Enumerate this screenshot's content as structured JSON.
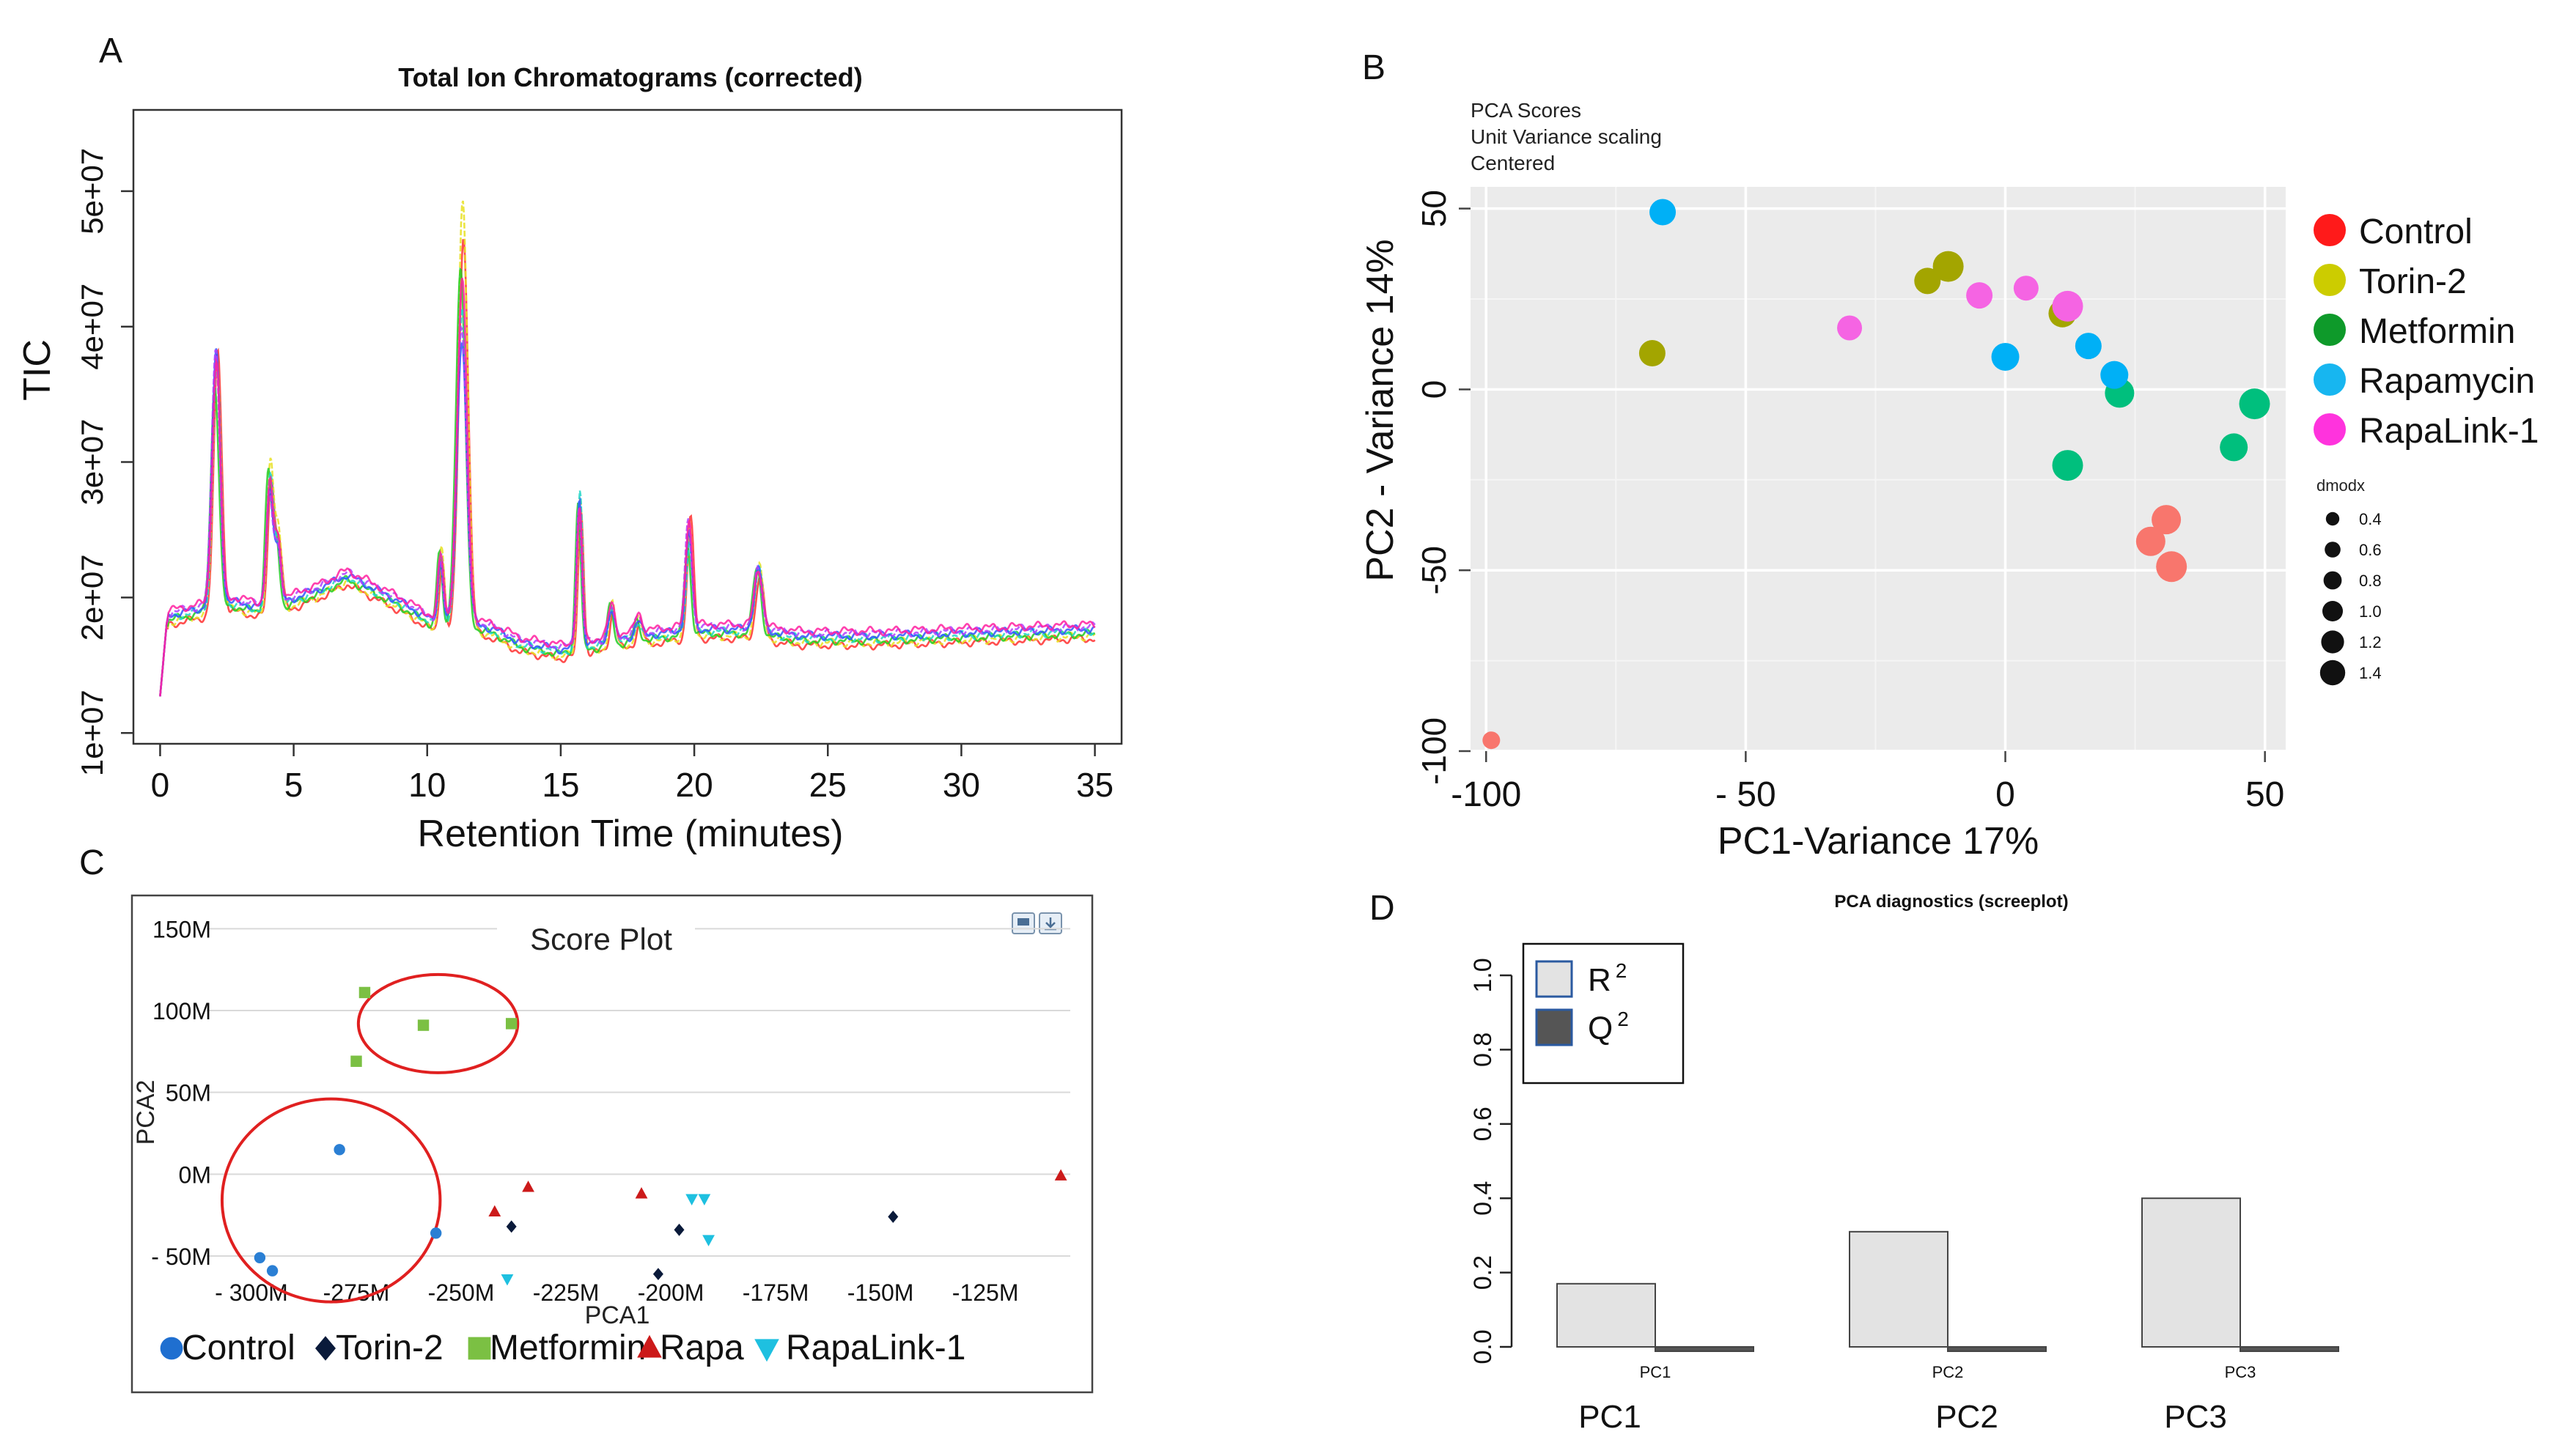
{
  "panel_letters": {
    "A": "A",
    "B": "B",
    "C": "C",
    "D": "D"
  },
  "chart_data": [
    {
      "panel": "A",
      "type": "line",
      "title": "Total Ion Chromatograms (corrected)",
      "xlabel": "Retention Time (minutes)",
      "ylabel": "TIC",
      "xlim": [
        -1,
        36
      ],
      "ylim": [
        9200000.0,
        56000000.0
      ],
      "xticks": [
        0,
        5,
        10,
        15,
        20,
        25,
        30,
        35
      ],
      "xtick_labels": [
        "0",
        "5",
        "10",
        "15",
        "20",
        "25",
        "30",
        "35"
      ],
      "yticks": [
        10000000.0,
        20000000.0,
        30000000.0,
        40000000.0,
        50000000.0
      ],
      "ytick_labels": [
        "1e+07",
        "2e+07",
        "3e+07",
        "4e+07",
        "5e+07"
      ],
      "baseline_profile": [
        [
          0,
          12500000.0
        ],
        [
          0.3,
          18500000.0
        ],
        [
          1.5,
          19000000.0
        ],
        [
          2.8,
          19500000.0
        ],
        [
          4,
          19000000.0
        ],
        [
          6,
          20500000.0
        ],
        [
          7,
          21500000.0
        ],
        [
          9,
          19500000.0
        ],
        [
          10.3,
          18000000.0
        ],
        [
          11.5,
          18000000.0
        ],
        [
          12.5,
          17500000.0
        ],
        [
          13.5,
          16500000.0
        ],
        [
          15,
          16000000.0
        ],
        [
          16.5,
          16500000.0
        ],
        [
          18,
          17000000.0
        ],
        [
          20,
          17500000.0
        ],
        [
          22,
          17500000.0
        ],
        [
          24,
          17000000.0
        ],
        [
          27,
          17000000.0
        ],
        [
          30,
          17200000.0
        ],
        [
          35,
          17500000.0
        ]
      ],
      "peaks": [
        [
          2.1,
          39000000.0,
          0.15
        ],
        [
          4.1,
          29500000.0,
          0.12
        ],
        [
          4.4,
          24500000.0,
          0.12
        ],
        [
          10.5,
          23500000.0,
          0.1
        ],
        [
          11.3,
          45000000.0,
          0.18
        ],
        [
          15.7,
          28000000.0,
          0.1
        ],
        [
          16.9,
          19500000.0,
          0.12
        ],
        [
          17.9,
          18500000.0,
          0.12
        ],
        [
          19.8,
          25500000.0,
          0.12
        ],
        [
          22.4,
          22500000.0,
          0.15
        ]
      ],
      "series": [
        {
          "name": "red",
          "color": "#ff3030",
          "scale": 1.16,
          "shift": 0.06
        },
        {
          "name": "yellow",
          "color": "#e7e020",
          "scale": 1.18,
          "shift": 0.03
        },
        {
          "name": "green",
          "color": "#22cc22",
          "scale": 1.0,
          "shift": -0.05
        },
        {
          "name": "cyan",
          "color": "#1fd6c6",
          "scale": 0.98,
          "shift": 0.02
        },
        {
          "name": "blue",
          "color": "#3355ff",
          "scale": 0.96,
          "shift": 0.0
        },
        {
          "name": "violet",
          "color": "#b040ff",
          "scale": 0.99,
          "shift": -0.02
        },
        {
          "name": "magenta",
          "color": "#ff20a0",
          "scale": 1.02,
          "shift": 0.01
        }
      ]
    },
    {
      "panel": "B",
      "type": "scatter",
      "title_lines": [
        "PCA Scores",
        "Unit Variance scaling",
        "Centered"
      ],
      "xlabel": "PC1-Variance 17%",
      "ylabel": "PC2 - Variance 14%",
      "xlim": [
        -103,
        54
      ],
      "ylim": [
        -100,
        56
      ],
      "xticks": [
        -100,
        -50,
        0,
        50
      ],
      "xtick_labels": [
        "-100",
        "- 50",
        "0",
        "50"
      ],
      "yticks": [
        -100,
        -50,
        0,
        50
      ],
      "ytick_labels": [
        "-100",
        "-50",
        "0",
        "50"
      ],
      "legend": [
        {
          "label": "Control",
          "color": "#ff1a1a"
        },
        {
          "label": "Torin-2",
          "color": "#cccc00"
        },
        {
          "label": "Metformin",
          "color": "#0e9a2a"
        },
        {
          "label": "Rapamycin",
          "color": "#17b6f0"
        },
        {
          "label": "RapaLink-1",
          "color": "#ff33dd"
        }
      ],
      "size_legend_title": "dmodx",
      "size_legend": [
        {
          "label": "0.4",
          "value": 0.4
        },
        {
          "label": "0.6",
          "value": 0.6
        },
        {
          "label": "0.8",
          "value": 0.8
        },
        {
          "label": "1.0",
          "value": 1.0
        },
        {
          "label": "1.2",
          "value": 1.2
        },
        {
          "label": "1.4",
          "value": 1.4
        }
      ],
      "points": [
        {
          "x": -99,
          "y": -97,
          "group": "Control",
          "color": "#f8766d",
          "size": 0.4
        },
        {
          "x": 31,
          "y": -36,
          "group": "Control",
          "color": "#f8766d",
          "size": 1.2
        },
        {
          "x": 28,
          "y": -42,
          "group": "Control",
          "color": "#f8766d",
          "size": 1.2
        },
        {
          "x": 32,
          "y": -49,
          "group": "Control",
          "color": "#f8766d",
          "size": 1.3
        },
        {
          "x": -68,
          "y": 10,
          "group": "Torin-2",
          "color": "#a3a500",
          "size": 1.0
        },
        {
          "x": -15,
          "y": 30,
          "group": "Torin-2",
          "color": "#a3a500",
          "size": 1.0
        },
        {
          "x": -11,
          "y": 34,
          "group": "Torin-2",
          "color": "#a3a500",
          "size": 1.3
        },
        {
          "x": 11,
          "y": 21,
          "group": "Torin-2",
          "color": "#a3a500",
          "size": 1.1
        },
        {
          "x": 22,
          "y": -1,
          "group": "Metformin",
          "color": "#00bf7d",
          "size": 1.2
        },
        {
          "x": 48,
          "y": -4,
          "group": "Metformin",
          "color": "#00bf7d",
          "size": 1.3
        },
        {
          "x": 44,
          "y": -16,
          "group": "Metformin",
          "color": "#00bf7d",
          "size": 1.1
        },
        {
          "x": 12,
          "y": -21,
          "group": "Metformin",
          "color": "#00bf7d",
          "size": 1.3
        },
        {
          "x": -66,
          "y": 49,
          "group": "Rapamycin",
          "color": "#00b0f6",
          "size": 1.0
        },
        {
          "x": 0,
          "y": 9,
          "group": "Rapamycin",
          "color": "#00b0f6",
          "size": 1.1
        },
        {
          "x": 16,
          "y": 12,
          "group": "Rapamycin",
          "color": "#00b0f6",
          "size": 1.0
        },
        {
          "x": 21,
          "y": 4,
          "group": "Rapamycin",
          "color": "#00b0f6",
          "size": 1.1
        },
        {
          "x": -30,
          "y": 17,
          "group": "RapaLink-1",
          "color": "#f564e3",
          "size": 0.9
        },
        {
          "x": -5,
          "y": 26,
          "group": "RapaLink-1",
          "color": "#f564e3",
          "size": 1.0
        },
        {
          "x": 4,
          "y": 28,
          "group": "RapaLink-1",
          "color": "#f564e3",
          "size": 0.9
        },
        {
          "x": 12,
          "y": 23,
          "group": "RapaLink-1",
          "color": "#f564e3",
          "size": 1.3
        }
      ]
    },
    {
      "panel": "C",
      "type": "scatter",
      "title": "Score Plot",
      "xlabel": "PCA1",
      "ylabel": "PCA2",
      "xlim": [
        -318,
        -103
      ],
      "ylim": [
        -67,
        160
      ],
      "xticks": [
        -300,
        -275,
        -250,
        -225,
        -200,
        -175,
        -150,
        -125
      ],
      "xtick_labels": [
        "- 300M",
        "-275M",
        "-250M",
        "-225M",
        "-200M",
        "-175M",
        "-150M",
        "-125M"
      ],
      "yticks": [
        -50,
        0,
        50,
        100,
        150
      ],
      "ytick_labels": [
        "- 50M",
        "0M",
        "50M",
        "100M",
        "150M"
      ],
      "legend": [
        {
          "label": "Control",
          "color": "#1f6fd0",
          "marker": "circle"
        },
        {
          "label": "Torin-2",
          "color": "#0a1a3a",
          "marker": "diamond"
        },
        {
          "label": "Metformin",
          "color": "#7bc043",
          "marker": "square"
        },
        {
          "label": "Rapa",
          "color": "#cc1a1a",
          "marker": "triangle-up"
        },
        {
          "label": "RapaLink-1",
          "color": "#1ec0e0",
          "marker": "triangle-down"
        }
      ],
      "points": [
        {
          "x": -298,
          "y": -51,
          "group": "Control",
          "marker": "circle",
          "color": "#2a7fd4"
        },
        {
          "x": -295,
          "y": -59,
          "group": "Control",
          "marker": "circle",
          "color": "#2a7fd4"
        },
        {
          "x": -279,
          "y": 15,
          "group": "Control",
          "marker": "circle",
          "color": "#2a7fd4"
        },
        {
          "x": -256,
          "y": -36,
          "group": "Control",
          "marker": "circle",
          "color": "#2a7fd4"
        },
        {
          "x": -273,
          "y": 111,
          "group": "Metformin",
          "marker": "square",
          "color": "#7bc043"
        },
        {
          "x": -275,
          "y": 69,
          "group": "Metformin",
          "marker": "square",
          "color": "#7bc043"
        },
        {
          "x": -259,
          "y": 91,
          "group": "Metformin",
          "marker": "square",
          "color": "#7bc043"
        },
        {
          "x": -238,
          "y": 92,
          "group": "Metformin",
          "marker": "square",
          "color": "#7bc043"
        },
        {
          "x": -238,
          "y": -32,
          "group": "Torin-2",
          "marker": "diamond",
          "color": "#0a1a3a"
        },
        {
          "x": -198,
          "y": -34,
          "group": "Torin-2",
          "marker": "diamond",
          "color": "#0a1a3a"
        },
        {
          "x": -203,
          "y": -61,
          "group": "Torin-2",
          "marker": "diamond",
          "color": "#0a1a3a"
        },
        {
          "x": -147,
          "y": -26,
          "group": "Torin-2",
          "marker": "diamond",
          "color": "#0a1a3a"
        },
        {
          "x": -242,
          "y": -23,
          "group": "Rapa",
          "marker": "triangle-up",
          "color": "#cc1a1a"
        },
        {
          "x": -234,
          "y": -8,
          "group": "Rapa",
          "marker": "triangle-up",
          "color": "#cc1a1a"
        },
        {
          "x": -207,
          "y": -12,
          "group": "Rapa",
          "marker": "triangle-up",
          "color": "#cc1a1a"
        },
        {
          "x": -107,
          "y": -1,
          "group": "Rapa",
          "marker": "triangle-up",
          "color": "#cc1a1a"
        },
        {
          "x": -239,
          "y": -64,
          "group": "RapaLink-1",
          "marker": "triangle-down",
          "color": "#1ec0e0"
        },
        {
          "x": -195,
          "y": -15,
          "group": "RapaLink-1",
          "marker": "triangle-down",
          "color": "#1ec0e0"
        },
        {
          "x": -192,
          "y": -15,
          "group": "RapaLink-1",
          "marker": "triangle-down",
          "color": "#1ec0e0"
        },
        {
          "x": -191,
          "y": -40,
          "group": "RapaLink-1",
          "marker": "triangle-down",
          "color": "#1ec0e0"
        }
      ],
      "ellipses": [
        {
          "cx": -255.5,
          "cy": 92,
          "rx": 19,
          "ry": 30,
          "color": "#e02020"
        },
        {
          "cx": -281,
          "cy": -16,
          "rx": 26,
          "ry": 62,
          "color": "#e02020"
        }
      ]
    },
    {
      "panel": "D",
      "type": "bar",
      "title": "PCA diagnostics (screeplot)",
      "categories": [
        "PC1",
        "PC2",
        "PC3"
      ],
      "category_labels_small": [
        "PC1",
        "PC2",
        "PC3"
      ],
      "category_labels_large": [
        "PC1",
        "PC2",
        "PC3"
      ],
      "ylim": [
        0,
        1.0
      ],
      "yticks": [
        0.0,
        0.2,
        0.4,
        0.6,
        0.8,
        1.0
      ],
      "ytick_labels": [
        "0.0",
        "0.2",
        "0.4",
        "0.6",
        "0.8",
        "1.0"
      ],
      "series": [
        {
          "name": "R",
          "sup": "2",
          "color": "#e3e3e3",
          "values": [
            0.17,
            0.31,
            0.4
          ]
        },
        {
          "name": "Q",
          "sup": "2",
          "color": "#555555",
          "values": [
            -0.01,
            -0.005,
            -0.01
          ]
        }
      ]
    }
  ]
}
